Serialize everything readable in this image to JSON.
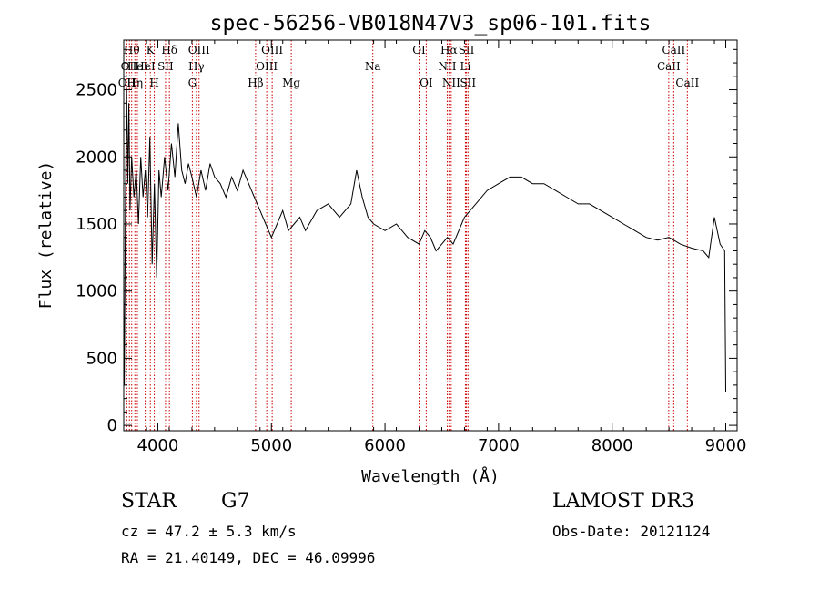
{
  "chart_data": {
    "type": "line",
    "title": "spec-56256-VB018N47V3_sp06-101.fits",
    "xlabel": "Wavelength (Å)",
    "ylabel": "Flux (relative)",
    "xlim": [
      3700,
      9100
    ],
    "ylim": [
      -40,
      2870
    ],
    "xticks": [
      4000,
      5000,
      6000,
      7000,
      8000,
      9000
    ],
    "xtick_labels": [
      "4000",
      "5000",
      "6000",
      "7000",
      "8000",
      "9000"
    ],
    "yticks": [
      0,
      500,
      1000,
      1500,
      2000,
      2500
    ],
    "ytick_labels": [
      "0",
      "500",
      "1000",
      "1500",
      "2000",
      "2500"
    ],
    "series": [
      {
        "name": "flux",
        "x": [
          3705,
          3715,
          3725,
          3735,
          3745,
          3755,
          3770,
          3790,
          3810,
          3830,
          3850,
          3870,
          3890,
          3910,
          3930,
          3950,
          3970,
          3990,
          4010,
          4030,
          4060,
          4090,
          4120,
          4150,
          4180,
          4210,
          4240,
          4270,
          4300,
          4340,
          4380,
          4420,
          4460,
          4500,
          4550,
          4600,
          4650,
          4700,
          4750,
          4800,
          4850,
          4900,
          4950,
          5000,
          5050,
          5100,
          5150,
          5200,
          5250,
          5300,
          5400,
          5500,
          5600,
          5700,
          5750,
          5800,
          5850,
          5900,
          6000,
          6100,
          6200,
          6300,
          6350,
          6400,
          6450,
          6500,
          6550,
          6600,
          6650,
          6700,
          6750,
          6800,
          6900,
          7000,
          7100,
          7200,
          7300,
          7400,
          7500,
          7600,
          7700,
          7800,
          7900,
          8000,
          8100,
          8200,
          8300,
          8400,
          8500,
          8600,
          8700,
          8800,
          8850,
          8900,
          8950,
          8990,
          9000
        ],
        "y": [
          300,
          1700,
          2500,
          1800,
          2400,
          1600,
          2000,
          1700,
          1900,
          1500,
          2000,
          1700,
          1900,
          1550,
          2150,
          1200,
          1800,
          1100,
          1900,
          1700,
          2000,
          1750,
          2100,
          1850,
          2250,
          1900,
          1800,
          1950,
          1850,
          1700,
          1900,
          1750,
          1950,
          1850,
          1800,
          1700,
          1850,
          1750,
          1900,
          1800,
          1700,
          1600,
          1500,
          1400,
          1500,
          1600,
          1450,
          1500,
          1550,
          1450,
          1600,
          1650,
          1550,
          1650,
          1900,
          1700,
          1550,
          1500,
          1450,
          1500,
          1400,
          1350,
          1450,
          1400,
          1300,
          1350,
          1400,
          1350,
          1450,
          1550,
          1600,
          1650,
          1750,
          1800,
          1850,
          1850,
          1800,
          1800,
          1750,
          1700,
          1650,
          1650,
          1600,
          1550,
          1500,
          1450,
          1400,
          1380,
          1400,
          1350,
          1320,
          1300,
          1250,
          1550,
          1350,
          1300,
          250
        ]
      }
    ],
    "lines": [
      {
        "wavelength": 3727,
        "label": "OII",
        "row": 2
      },
      {
        "wavelength": 3750,
        "label": "OII",
        "row": 1
      },
      {
        "wavelength": 3770,
        "label": "Hθ",
        "row": 0
      },
      {
        "wavelength": 3798,
        "label": "Hη",
        "row": 2
      },
      {
        "wavelength": 3820,
        "label": "HeI",
        "row": 1
      },
      {
        "wavelength": 3889,
        "label": "HeI",
        "row": 1
      },
      {
        "wavelength": 3934,
        "label": "K",
        "row": 0
      },
      {
        "wavelength": 3969,
        "label": "H",
        "row": 2
      },
      {
        "wavelength": 4068,
        "label": "SII",
        "row": 1
      },
      {
        "wavelength": 4102,
        "label": "Hδ",
        "row": 0
      },
      {
        "wavelength": 4304,
        "label": "G",
        "row": 2
      },
      {
        "wavelength": 4340,
        "label": "Hγ",
        "row": 1
      },
      {
        "wavelength": 4363,
        "label": "OIII",
        "row": 0
      },
      {
        "wavelength": 4861,
        "label": "Hβ",
        "row": 2
      },
      {
        "wavelength": 4959,
        "label": "OIII",
        "row": 1
      },
      {
        "wavelength": 5007,
        "label": "OIII",
        "row": 0
      },
      {
        "wavelength": 5175,
        "label": "Mg",
        "row": 2
      },
      {
        "wavelength": 5893,
        "label": "Na",
        "row": 1
      },
      {
        "wavelength": 6300,
        "label": "OI",
        "row": 0
      },
      {
        "wavelength": 6363,
        "label": "OI",
        "row": 2
      },
      {
        "wavelength": 6548,
        "label": "NII",
        "row": 1
      },
      {
        "wavelength": 6563,
        "label": "Hα",
        "row": 0
      },
      {
        "wavelength": 6583,
        "label": "NII",
        "row": 2
      },
      {
        "wavelength": 6708,
        "label": "Li",
        "row": 1
      },
      {
        "wavelength": 6717,
        "label": "SII",
        "row": 0
      },
      {
        "wavelength": 6731,
        "label": "SII",
        "row": 2
      },
      {
        "wavelength": 8498,
        "label": "CaII",
        "row": 1
      },
      {
        "wavelength": 8542,
        "label": "CaII",
        "row": 0
      },
      {
        "wavelength": 8662,
        "label": "CaII",
        "row": 2
      }
    ],
    "line_color": "#cc0000",
    "grid": false
  },
  "info": {
    "object_class": "STAR",
    "subclass": "G7",
    "survey": "LAMOST DR3",
    "redshift_text": "cz = 47.2 ± 5.3 km/s",
    "obs_date": "Obs-Date: 20121124",
    "coords": "RA =  21.40149, DEC =  46.09996"
  }
}
